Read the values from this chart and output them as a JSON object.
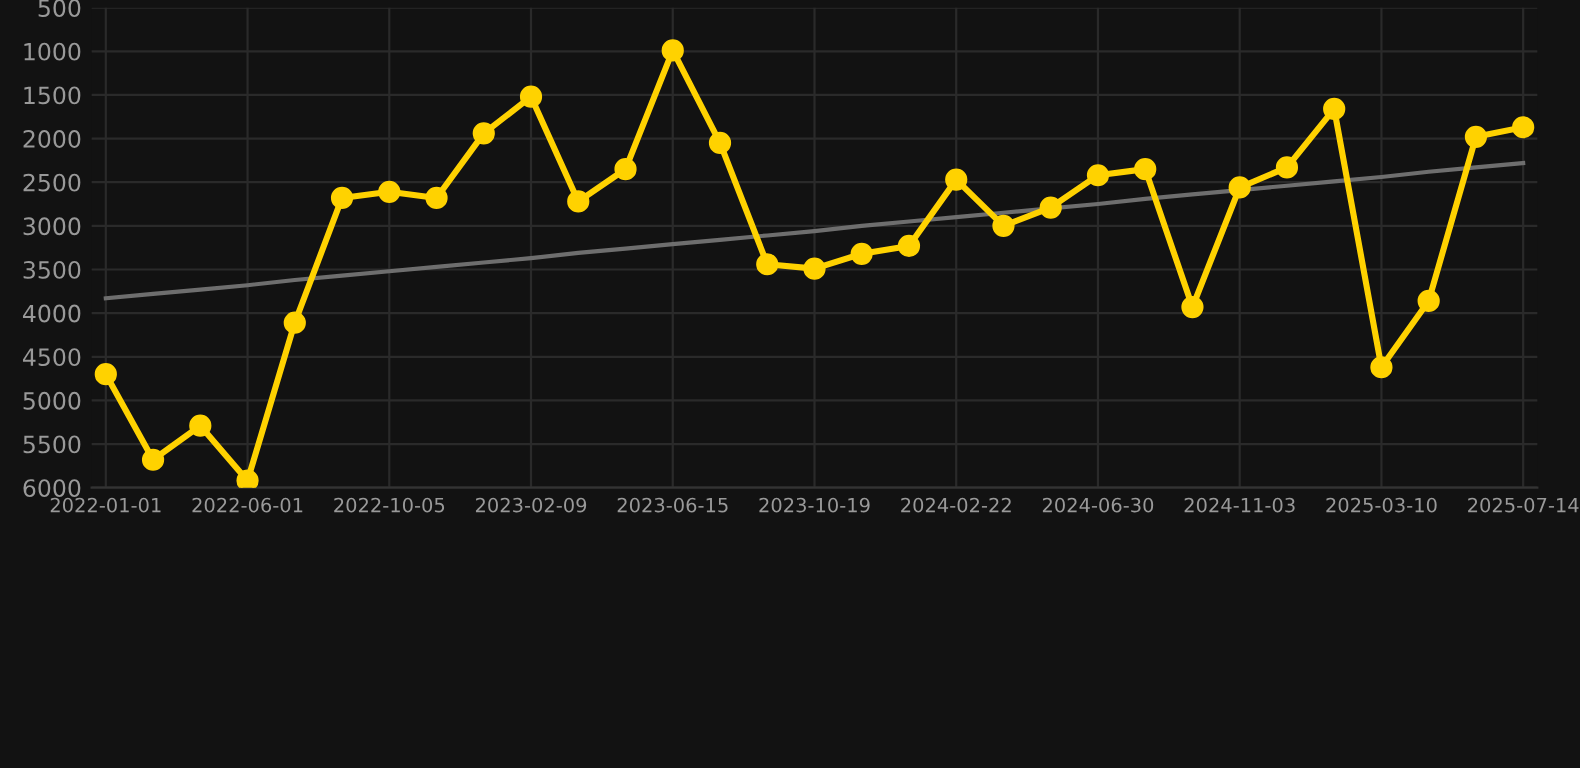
{
  "chart_data": {
    "type": "line",
    "categories": [
      "2022-01-01",
      null,
      null,
      "2022-06-01",
      null,
      null,
      "2022-10-05",
      null,
      null,
      "2023-02-09",
      null,
      null,
      "2023-06-15",
      null,
      null,
      "2023-10-19",
      null,
      null,
      "2024-02-22",
      null,
      null,
      "2024-06-30",
      null,
      null,
      "2024-11-03",
      null,
      null,
      "2025-03-10",
      null,
      null,
      "2025-07-14"
    ],
    "series": [
      {
        "color": "#ffd200",
        "marker": "circle",
        "values": [
          4700,
          5680,
          5290,
          5920,
          4110,
          2680,
          2610,
          2680,
          1940,
          1520,
          2720,
          2350,
          990,
          2050,
          3440,
          3490,
          3320,
          3230,
          2470,
          3000,
          2790,
          2420,
          2350,
          3930,
          2560,
          2330,
          1660,
          4620,
          3860,
          1980,
          1870
        ]
      },
      {
        "type": "line",
        "color": "#6e6e6e",
        "marker": "none",
        "values": [
          3830,
          3780,
          3730,
          3680,
          3620,
          3570,
          3520,
          3470,
          3420,
          3370,
          3310,
          3260,
          3210,
          3160,
          3110,
          3060,
          3000,
          2950,
          2900,
          2850,
          2800,
          2750,
          2690,
          2640,
          2590,
          2540,
          2490,
          2440,
          2380,
          2330,
          2280
        ]
      }
    ],
    "ylim": [
      6000,
      500
    ],
    "yticks": [
      500,
      1000,
      1500,
      2000,
      2500,
      3000,
      3500,
      4000,
      4500,
      5000,
      5500,
      6000
    ],
    "grid": true
  }
}
